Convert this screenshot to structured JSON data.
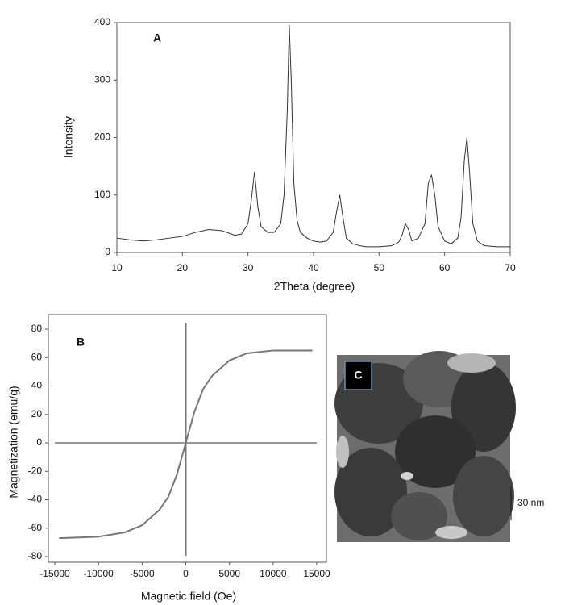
{
  "chart_data": [
    {
      "type": "line",
      "panel_label": "A",
      "x_label": "2Theta (degree)",
      "y_label": "Intensity",
      "xlim": [
        10,
        70
      ],
      "ylim": [
        0,
        400
      ],
      "xticks": [
        10,
        20,
        30,
        40,
        50,
        60,
        70
      ],
      "yticks": [
        0,
        100,
        200,
        300,
        400
      ],
      "x": [
        10,
        12,
        14,
        16,
        18,
        20,
        22,
        24,
        26,
        28,
        29,
        30,
        30.5,
        31,
        31.5,
        32,
        33,
        34,
        35,
        35.5,
        36,
        36.3,
        36.6,
        37,
        37.5,
        38,
        39,
        40,
        41,
        42,
        43,
        43.5,
        44,
        44.5,
        45,
        46,
        47,
        48,
        50,
        52,
        53,
        53.5,
        54,
        54.5,
        55,
        56,
        57,
        57.5,
        58,
        58.5,
        59,
        60,
        61,
        62,
        62.5,
        63,
        63.4,
        63.8,
        64.3,
        65,
        66,
        68,
        70
      ],
      "series": [
        {
          "color": "#333333",
          "values": [
            25,
            22,
            20,
            22,
            25,
            28,
            35,
            40,
            38,
            30,
            32,
            50,
            90,
            140,
            80,
            45,
            35,
            35,
            50,
            100,
            250,
            395,
            300,
            120,
            55,
            35,
            25,
            20,
            18,
            20,
            35,
            70,
            100,
            60,
            25,
            15,
            12,
            10,
            10,
            12,
            18,
            30,
            50,
            40,
            20,
            25,
            50,
            120,
            135,
            100,
            45,
            20,
            15,
            25,
            60,
            160,
            200,
            140,
            50,
            20,
            12,
            10,
            10
          ]
        }
      ]
    },
    {
      "type": "line",
      "panel_label": "B",
      "x_label": "Magnetic field (Oe)",
      "y_label": "Magnetization (emu/g)",
      "xlim": [
        -15000,
        15000
      ],
      "ylim": [
        -80,
        80
      ],
      "xticks": [
        -15000,
        -10000,
        -5000,
        0,
        5000,
        10000,
        15000
      ],
      "yticks": [
        -80,
        -60,
        -40,
        -20,
        0,
        20,
        40,
        60,
        80
      ],
      "x": [
        -14500,
        -10000,
        -7000,
        -5000,
        -3000,
        -2000,
        -1000,
        0,
        1000,
        2000,
        3000,
        5000,
        7000,
        10000,
        14500
      ],
      "series": [
        {
          "color": "#777777",
          "values": [
            -67,
            -66,
            -63,
            -58,
            -47,
            -38,
            -22,
            0,
            22,
            38,
            47,
            58,
            63,
            65,
            65
          ]
        }
      ]
    }
  ],
  "image_panel": {
    "label": "C",
    "scale_bar": "30 nm"
  }
}
